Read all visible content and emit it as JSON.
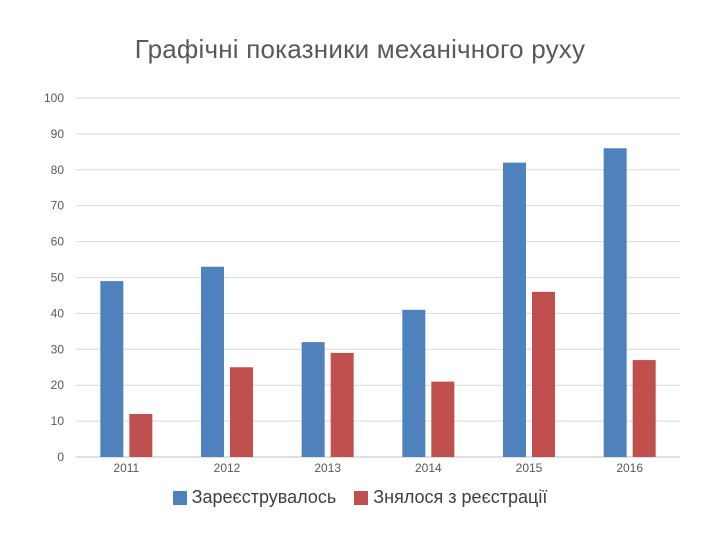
{
  "chart_data": {
    "type": "bar",
    "title": "Графічні показники механічного руху",
    "categories": [
      "2011",
      "2012",
      "2013",
      "2014",
      "2015",
      "2016"
    ],
    "series": [
      {
        "name": "Зареєструвалось",
        "color": "#4F81BD",
        "values": [
          49,
          53,
          32,
          41,
          82,
          86
        ]
      },
      {
        "name": "Знялося з реєстрації",
        "color": "#C0504D",
        "values": [
          12,
          25,
          29,
          21,
          46,
          27
        ]
      }
    ],
    "yticks": [
      "0",
      "10",
      "20",
      "30",
      "40",
      "50",
      "60",
      "70",
      "80",
      "90",
      "100"
    ],
    "ylim": [
      0,
      100
    ],
    "grid": true,
    "legend_position": "bottom"
  }
}
